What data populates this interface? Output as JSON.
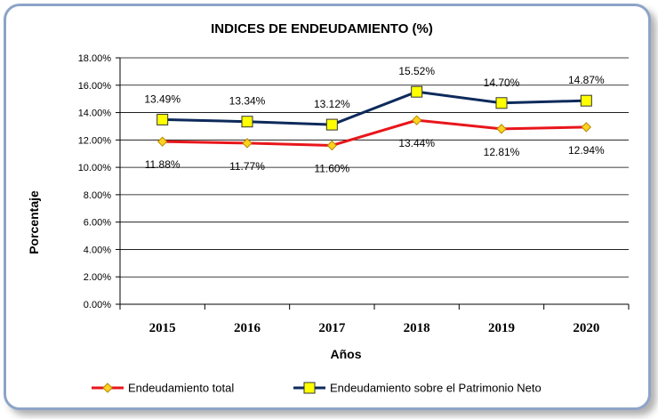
{
  "chart_data": {
    "type": "line",
    "title": "INDICES DE ENDEUDAMIENTO (%)",
    "xlabel": "Años",
    "ylabel": "Porcentaje",
    "categories": [
      "2015",
      "2016",
      "2017",
      "2018",
      "2019",
      "2020"
    ],
    "ylim": [
      0,
      18
    ],
    "yticks": [
      "0.00%",
      "2.00%",
      "4.00%",
      "6.00%",
      "8.00%",
      "10.00%",
      "12.00%",
      "14.00%",
      "16.00%",
      "18.00%"
    ],
    "grid": true,
    "legend_position": "bottom",
    "series": [
      {
        "name": "Endeudamiento total",
        "values": [
          11.88,
          11.77,
          11.6,
          13.44,
          12.81,
          12.94
        ],
        "labels": [
          "11.88%",
          "11.77%",
          "11.60%",
          "13.44%",
          "12.81%",
          "12.94%"
        ],
        "line_color": "#e8161b",
        "marker": "diamond",
        "marker_color": "#ffd21f",
        "label_position": "below"
      },
      {
        "name": "Endeudamiento sobre el Patrimonio Neto",
        "values": [
          13.49,
          13.34,
          13.12,
          15.52,
          14.7,
          14.87
        ],
        "labels": [
          "13.49%",
          "13.34%",
          "13.12%",
          "15.52%",
          "14.70%",
          "14.87%"
        ],
        "line_color": "#0d2a5c",
        "marker": "square",
        "marker_color": "#ffff00",
        "label_position": "above"
      }
    ]
  }
}
